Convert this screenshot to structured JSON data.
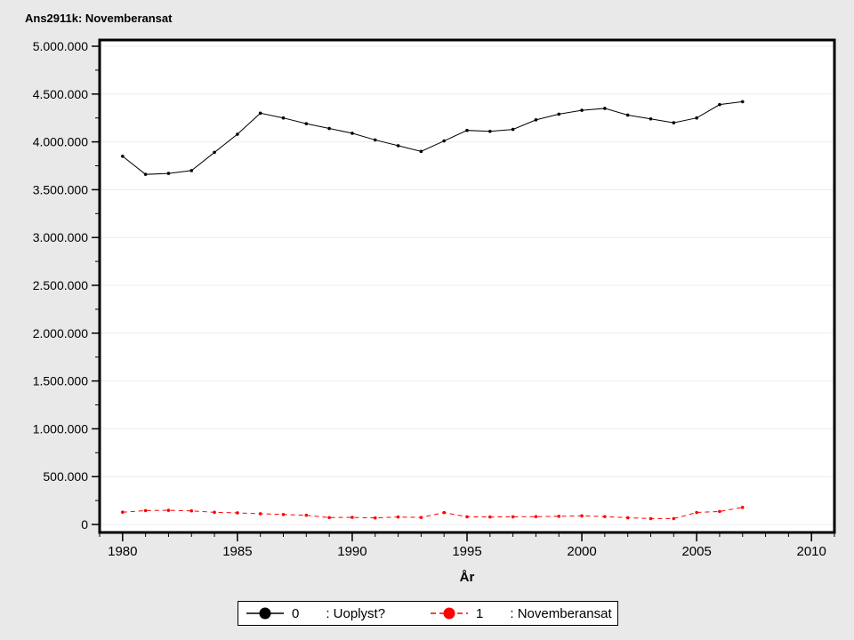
{
  "title": "Ans2911k: Novemberansat",
  "colors": {
    "background": "#e9e9e9",
    "plot_background": "#ffffff",
    "grid": "#ececec",
    "frame": "#000000",
    "series0": "#000000",
    "series1": "#ff0000",
    "text": "#000000"
  },
  "chart_data": {
    "type": "line",
    "title": "Ans2911k: Novemberansat",
    "xlabel": "År",
    "ylabel": "",
    "grid": "horizontal-major",
    "legend_position": "bottom",
    "xlim": [
      1979,
      2011
    ],
    "ylim": [
      0,
      5000000
    ],
    "x": [
      1980,
      1981,
      1982,
      1983,
      1984,
      1985,
      1986,
      1987,
      1988,
      1989,
      1990,
      1991,
      1992,
      1993,
      1994,
      1995,
      1996,
      1997,
      1998,
      1999,
      2000,
      2001,
      2002,
      2003,
      2004,
      2005,
      2006,
      2007
    ],
    "series": [
      {
        "name": "0",
        "label": ": Uoplyst?",
        "color": "#000000",
        "style": "solid",
        "values": [
          3850000,
          3660000,
          3670000,
          3700000,
          3890000,
          4080000,
          4300000,
          4250000,
          4190000,
          4140000,
          4090000,
          4020000,
          3960000,
          3900000,
          4010000,
          4120000,
          4110000,
          4130000,
          4230000,
          4290000,
          4330000,
          4350000,
          4280000,
          4240000,
          4200000,
          4250000,
          4390000,
          4420000
        ]
      },
      {
        "name": "1",
        "label": ": Novemberansat",
        "color": "#ff0000",
        "style": "dashed",
        "values": [
          128000,
          145000,
          148000,
          142000,
          127000,
          121000,
          112000,
          104000,
          96000,
          72000,
          74000,
          68000,
          78000,
          73000,
          124000,
          80000,
          78000,
          80000,
          82000,
          85000,
          90000,
          82000,
          70000,
          61000,
          61000,
          125000,
          136000,
          178000
        ]
      }
    ],
    "x_major_ticks": [
      1980,
      1985,
      1990,
      1995,
      2000,
      2005,
      2010
    ],
    "x_tick_labels": [
      "1980",
      "1985",
      "1990",
      "1995",
      "2000",
      "2005",
      "2010"
    ],
    "x_minor_step": 1,
    "y_major_ticks": [
      0,
      500000,
      1000000,
      1500000,
      2000000,
      2500000,
      3000000,
      3500000,
      4000000,
      4500000,
      5000000
    ],
    "y_tick_labels": [
      "0",
      "500.000",
      "1.000.000",
      "1.500.000",
      "2.000.000",
      "2.500.000",
      "3.000.000",
      "3.500.000",
      "4.000.000",
      "4.500.000",
      "5.000.000"
    ],
    "y_minor_step": 250000
  },
  "x_axis": {
    "label": "År"
  },
  "legend": {
    "items": [
      {
        "value": "0",
        "label": ": Uoplyst?",
        "color": "#000000",
        "line_style": "solid"
      },
      {
        "value": "1",
        "label": ": Novemberansat",
        "color": "#ff0000",
        "line_style": "dashed"
      }
    ]
  }
}
